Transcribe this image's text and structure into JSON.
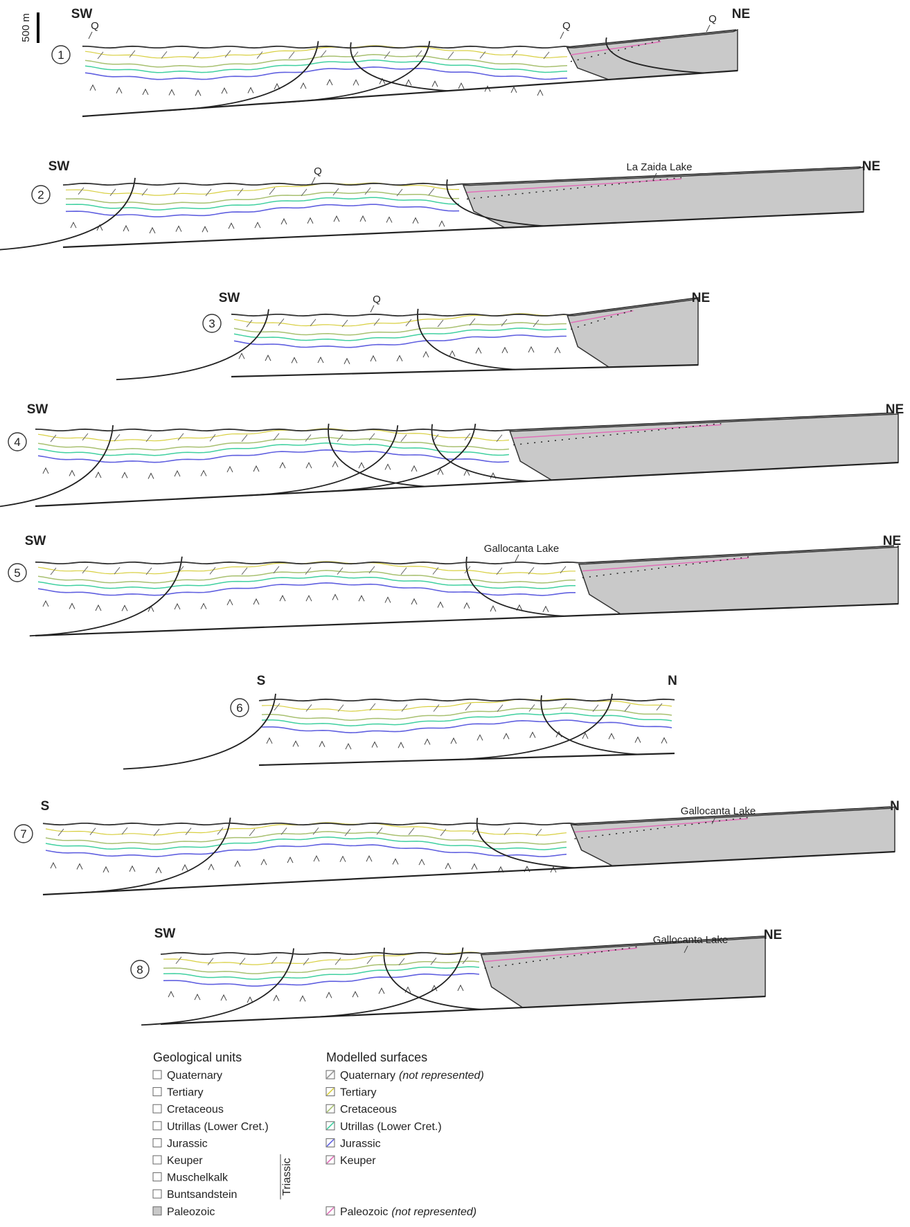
{
  "scale_bar": "500 m",
  "sections": [
    {
      "number": "1",
      "left": "SW",
      "right": "NE",
      "labels": [
        "Q",
        "Q",
        "Q"
      ]
    },
    {
      "number": "2",
      "left": "SW",
      "right": "NE",
      "labels": [
        "Q",
        "La Zaida Lake"
      ]
    },
    {
      "number": "3",
      "left": "SW",
      "right": "NE",
      "labels": [
        "Q"
      ]
    },
    {
      "number": "4",
      "left": "SW",
      "right": "NE"
    },
    {
      "number": "5",
      "left": "SW",
      "right": "NE",
      "labels": [
        "Gallocanta Lake"
      ]
    },
    {
      "number": "6",
      "left": "S",
      "right": "N"
    },
    {
      "number": "7",
      "left": "S",
      "right": "N",
      "labels": [
        "Gallocanta Lake"
      ]
    },
    {
      "number": "8",
      "left": "SW",
      "right": "NE",
      "labels": [
        "Gallocanta Lake"
      ]
    }
  ],
  "legend": {
    "units_title": "Geological units",
    "units": [
      "Quaternary",
      "Tertiary",
      "Cretaceous",
      "Utrillas (Lower Cret.)",
      "Jurassic",
      "Keuper",
      "Muschelkalk",
      "Buntsandstein",
      "Paleozoic"
    ],
    "group": "Triassic",
    "surfaces_title": "Modelled surfaces",
    "surfaces": [
      {
        "name": "Quaternary",
        "note": "(not represented)"
      },
      {
        "name": "Tertiary"
      },
      {
        "name": "Cretaceous"
      },
      {
        "name": "Utrillas (Lower Cret.)"
      },
      {
        "name": "Jurassic"
      },
      {
        "name": "Keuper"
      },
      {
        "name": "Paleozoic",
        "note": "(not represented)"
      }
    ]
  }
}
